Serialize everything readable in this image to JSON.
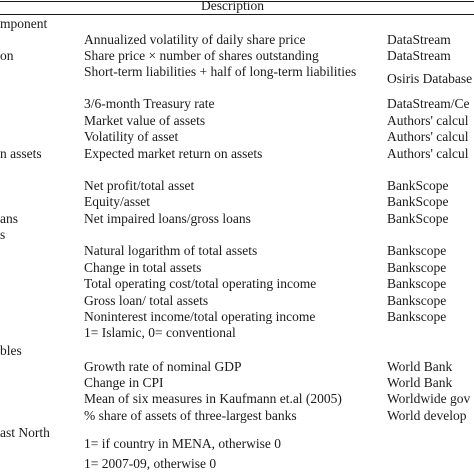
{
  "table": {
    "header": {
      "description": "Description"
    },
    "rows": [
      {
        "col0": "mponent",
        "desc": "",
        "source": ""
      },
      {
        "col0": "",
        "desc": "Annualized volatility of daily share price",
        "source": "DataStream"
      },
      {
        "col0": "on",
        "desc": "Share price × number of shares outstanding",
        "source": "DataStream"
      },
      {
        "col0": "",
        "desc": "Short-term liabilities + half of long-term liabilities",
        "source": "Osiris Database"
      },
      {
        "col0": "",
        "desc": "3/6-month Treasury rate",
        "source": "DataStream/Ce"
      },
      {
        "col0": "",
        "desc": "Market value of assets",
        "source": "Authors' calcul"
      },
      {
        "col0": "",
        "desc": "Volatility of asset",
        "source": "Authors' calcul"
      },
      {
        "col0": "n assets",
        "desc": "Expected market return on assets",
        "source": "Authors' calcul"
      },
      {
        "col0": "",
        "desc": "Net profit/total asset",
        "source": "BankScope"
      },
      {
        "col0": "",
        "desc": "Equity/asset",
        "source": "BankScope"
      },
      {
        "col0": "ans",
        "desc": "Net impaired loans/gross loans",
        "source": "BankScope"
      },
      {
        "col0": "s",
        "desc": "",
        "source": ""
      },
      {
        "col0": "",
        "desc": "Natural logarithm of total assets",
        "source": "Bankscope"
      },
      {
        "col0": "",
        "desc": "Change in total assets",
        "source": "Bankscope"
      },
      {
        "col0": "",
        "desc": "Total operating cost/total operating income",
        "source": "Bankscope"
      },
      {
        "col0": "",
        "desc": "Gross loan/ total assets",
        "source": "Bankscope"
      },
      {
        "col0": "",
        "desc": "Noninterest income/total operating income",
        "source": "Bankscope"
      },
      {
        "col0": "",
        "desc": "1= Islamic, 0= conventional",
        "source": ""
      },
      {
        "col0": "bles",
        "desc": "",
        "source": ""
      },
      {
        "col0": "",
        "desc": "Growth rate of nominal GDP",
        "source": "World Bank"
      },
      {
        "col0": "",
        "desc": "Change in CPI",
        "source": "World Bank"
      },
      {
        "col0": "",
        "desc": "Mean of six measures in Kaufmann et.al (2005)",
        "source": "Worldwide gov"
      },
      {
        "col0": "",
        "desc": "% share of assets of three-largest banks",
        "source": "World develop"
      },
      {
        "col0": "ast North",
        "desc": "1= if country in  MENA, otherwise 0",
        "source": ""
      },
      {
        "col0": "",
        "desc": "1= 2007-09, otherwise 0",
        "source": ""
      }
    ]
  }
}
